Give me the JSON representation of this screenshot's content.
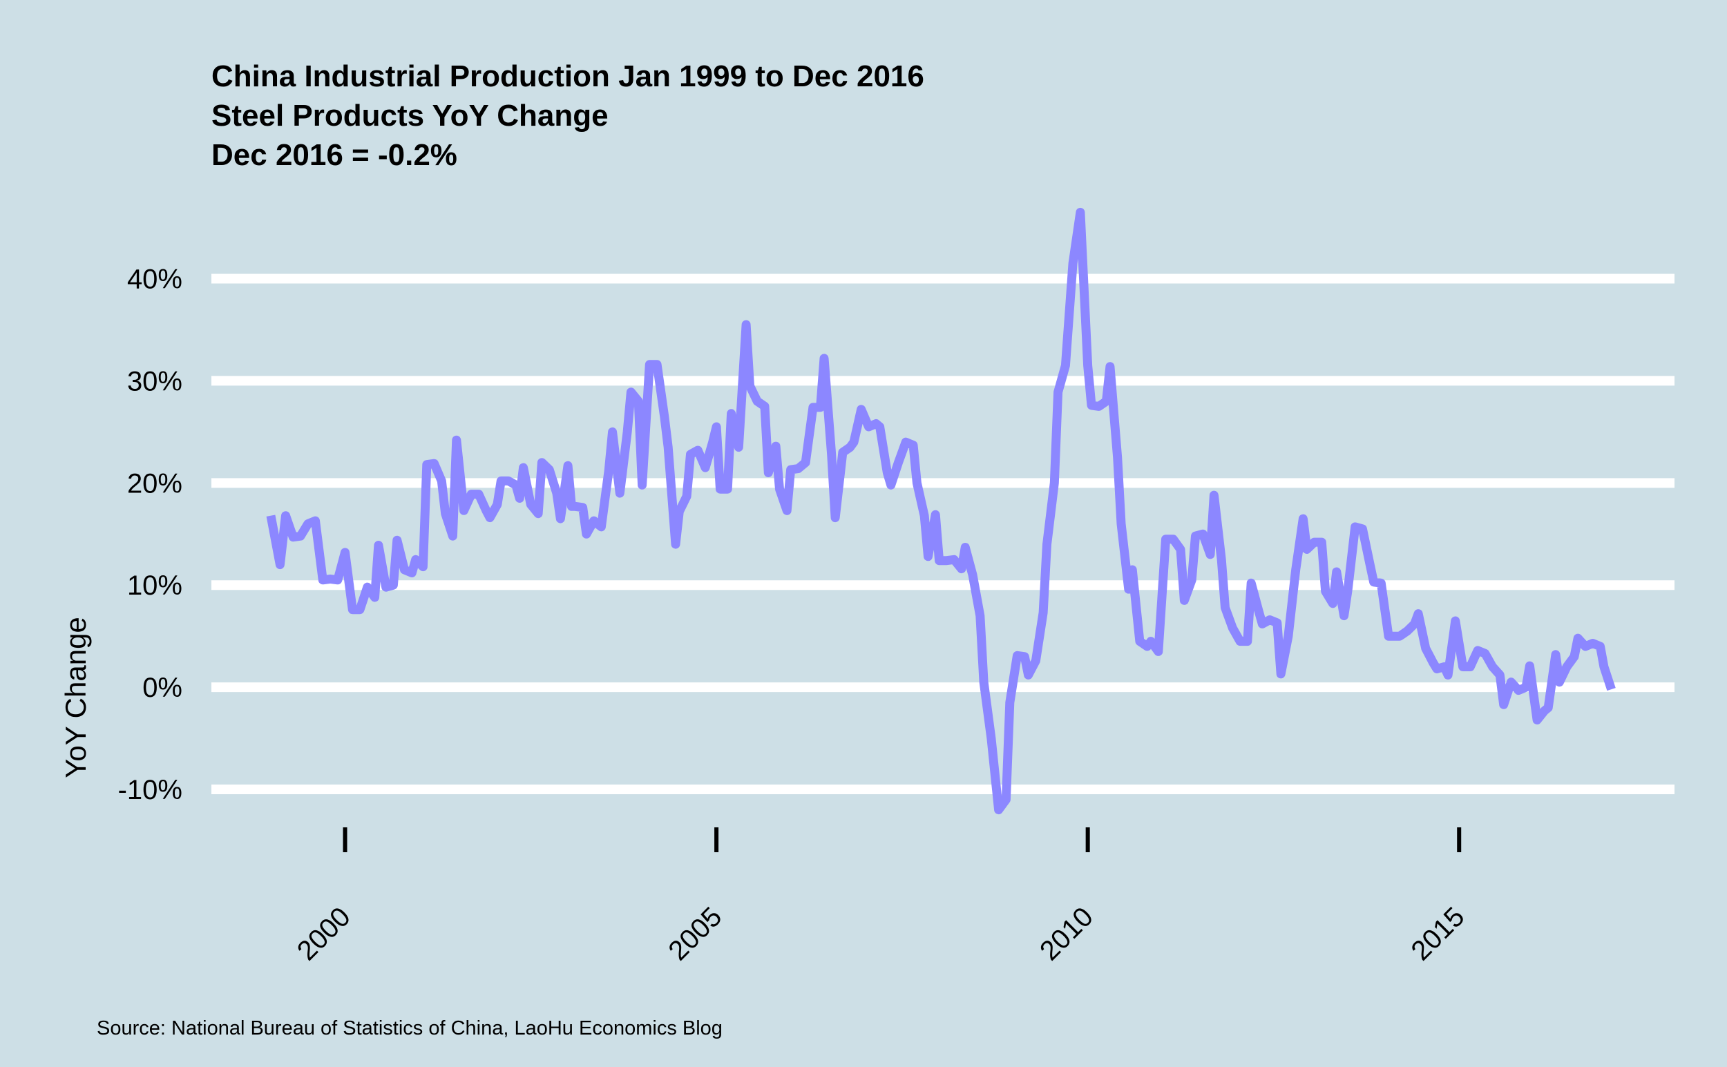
{
  "titles": {
    "line1": "China Industrial Production Jan 1999 to Dec 2016",
    "line2": "Steel Products YoY Change",
    "line3": "Dec 2016 = -0.2%"
  },
  "caption": "Source: National Bureau of Statistics of China, LaoHu Economics Blog",
  "colors": {
    "background": "#cddfe6",
    "grid": "#ffffff",
    "line": "#8c87ff"
  },
  "chart_data": {
    "type": "line",
    "title": "China Industrial Production Jan 1999 to Dec 2016",
    "subtitle": "Steel Products YoY Change",
    "ylabel": "YoY Change",
    "xlabel": "",
    "ylim": [
      -12.5,
      47
    ],
    "xlim": [
      1998.2,
      2017.9
    ],
    "y_ticks": [
      -10,
      0,
      10,
      20,
      30,
      40
    ],
    "y_tick_labels": [
      "-10%",
      "0%",
      "10%",
      "20%",
      "30%",
      "40%"
    ],
    "x_ticks": [
      2000,
      2005,
      2010,
      2015
    ],
    "x_tick_labels": [
      "2000",
      "2005",
      "2010",
      "2015"
    ],
    "grid": "horizontal",
    "legend": "none",
    "series": [
      {
        "points": [
          [
            1999.0,
            16.8
          ],
          [
            1999.125,
            12.0
          ],
          [
            1999.2,
            16.8
          ],
          [
            1999.3,
            14.7
          ],
          [
            1999.4,
            14.8
          ],
          [
            1999.5,
            16.0
          ],
          [
            1999.6,
            16.3
          ],
          [
            1999.7,
            10.5
          ],
          [
            1999.8,
            10.6
          ],
          [
            1999.9,
            10.5
          ],
          [
            2000.0,
            13.2
          ],
          [
            2000.1,
            7.6
          ],
          [
            2000.2,
            7.6
          ],
          [
            2000.3,
            9.8
          ],
          [
            2000.4,
            8.8
          ],
          [
            2000.45,
            13.9
          ],
          [
            2000.55,
            9.8
          ],
          [
            2000.65,
            10.0
          ],
          [
            2000.7,
            14.4
          ],
          [
            2000.8,
            11.5
          ],
          [
            2000.9,
            11.2
          ],
          [
            2000.95,
            12.5
          ],
          [
            2001.05,
            11.8
          ],
          [
            2001.1,
            21.8
          ],
          [
            2001.2,
            21.9
          ],
          [
            2001.3,
            20.2
          ],
          [
            2001.35,
            17.0
          ],
          [
            2001.45,
            14.8
          ],
          [
            2001.5,
            24.2
          ],
          [
            2001.6,
            17.3
          ],
          [
            2001.7,
            18.9
          ],
          [
            2001.8,
            18.9
          ],
          [
            2001.9,
            17.3
          ],
          [
            2001.95,
            16.6
          ],
          [
            2002.05,
            17.9
          ],
          [
            2002.1,
            20.2
          ],
          [
            2002.2,
            20.2
          ],
          [
            2002.3,
            19.8
          ],
          [
            2002.35,
            18.5
          ],
          [
            2002.4,
            21.5
          ],
          [
            2002.5,
            17.9
          ],
          [
            2002.6,
            17.0
          ],
          [
            2002.65,
            22.0
          ],
          [
            2002.75,
            21.3
          ],
          [
            2002.85,
            19.0
          ],
          [
            2002.9,
            16.5
          ],
          [
            2003.0,
            21.7
          ],
          [
            2003.05,
            17.7
          ],
          [
            2003.1,
            17.7
          ],
          [
            2003.2,
            17.6
          ],
          [
            2003.25,
            15.0
          ],
          [
            2003.35,
            16.3
          ],
          [
            2003.45,
            15.7
          ],
          [
            2003.55,
            21.2
          ],
          [
            2003.6,
            25.0
          ],
          [
            2003.7,
            19.0
          ],
          [
            2003.8,
            25.0
          ],
          [
            2003.85,
            28.9
          ],
          [
            2003.95,
            28.0
          ],
          [
            2004.0,
            19.8
          ],
          [
            2004.1,
            31.6
          ],
          [
            2004.2,
            31.6
          ],
          [
            2004.3,
            26.5
          ],
          [
            2004.35,
            23.5
          ],
          [
            2004.45,
            14.0
          ],
          [
            2004.5,
            17.2
          ],
          [
            2004.6,
            18.7
          ],
          [
            2004.65,
            22.8
          ],
          [
            2004.75,
            23.2
          ],
          [
            2004.85,
            21.5
          ],
          [
            2004.95,
            24.0
          ],
          [
            2005.0,
            25.5
          ],
          [
            2005.05,
            19.4
          ],
          [
            2005.15,
            19.4
          ],
          [
            2005.2,
            26.8
          ],
          [
            2005.3,
            23.5
          ],
          [
            2005.4,
            35.5
          ],
          [
            2005.45,
            29.5
          ],
          [
            2005.55,
            28.0
          ],
          [
            2005.65,
            27.5
          ],
          [
            2005.7,
            21.0
          ],
          [
            2005.8,
            23.6
          ],
          [
            2005.85,
            19.4
          ],
          [
            2005.95,
            17.3
          ],
          [
            2006.0,
            21.3
          ],
          [
            2006.1,
            21.4
          ],
          [
            2006.2,
            22.0
          ],
          [
            2006.3,
            27.4
          ],
          [
            2006.4,
            27.4
          ],
          [
            2006.45,
            32.2
          ],
          [
            2006.55,
            22.8
          ],
          [
            2006.6,
            16.6
          ],
          [
            2006.7,
            23.0
          ],
          [
            2006.8,
            23.5
          ],
          [
            2006.85,
            24.0
          ],
          [
            2006.95,
            27.2
          ],
          [
            2007.05,
            25.5
          ],
          [
            2007.15,
            25.8
          ],
          [
            2007.2,
            25.5
          ],
          [
            2007.3,
            21.0
          ],
          [
            2007.35,
            19.8
          ],
          [
            2007.45,
            22.0
          ],
          [
            2007.55,
            24.0
          ],
          [
            2007.65,
            23.7
          ],
          [
            2007.7,
            20.0
          ],
          [
            2007.8,
            16.8
          ],
          [
            2007.85,
            12.8
          ],
          [
            2007.95,
            16.9
          ],
          [
            2008.0,
            12.4
          ],
          [
            2008.1,
            12.4
          ],
          [
            2008.2,
            12.5
          ],
          [
            2008.3,
            11.6
          ],
          [
            2008.35,
            13.7
          ],
          [
            2008.45,
            11.0
          ],
          [
            2008.55,
            7.0
          ],
          [
            2008.6,
            0.5
          ],
          [
            2008.7,
            -5.0
          ],
          [
            2008.8,
            -12.0
          ],
          [
            2008.9,
            -11.0
          ],
          [
            2008.95,
            -1.5
          ],
          [
            2009.05,
            3.1
          ],
          [
            2009.15,
            3.0
          ],
          [
            2009.2,
            1.2
          ],
          [
            2009.3,
            2.6
          ],
          [
            2009.4,
            7.3
          ],
          [
            2009.45,
            14.0
          ],
          [
            2009.55,
            20.0
          ],
          [
            2009.6,
            28.9
          ],
          [
            2009.7,
            31.5
          ],
          [
            2009.8,
            41.5
          ],
          [
            2009.9,
            46.5
          ],
          [
            2010.0,
            31.5
          ],
          [
            2010.05,
            27.6
          ],
          [
            2010.15,
            27.5
          ],
          [
            2010.25,
            28.0
          ],
          [
            2010.3,
            31.4
          ],
          [
            2010.4,
            22.5
          ],
          [
            2010.45,
            16.0
          ],
          [
            2010.55,
            9.6
          ],
          [
            2010.6,
            11.5
          ],
          [
            2010.7,
            4.5
          ],
          [
            2010.8,
            4.0
          ],
          [
            2010.85,
            4.5
          ],
          [
            2010.95,
            3.5
          ],
          [
            2011.05,
            14.5
          ],
          [
            2011.15,
            14.5
          ],
          [
            2011.25,
            13.5
          ],
          [
            2011.3,
            8.5
          ],
          [
            2011.4,
            10.5
          ],
          [
            2011.45,
            14.8
          ],
          [
            2011.55,
            15.0
          ],
          [
            2011.65,
            13.0
          ],
          [
            2011.7,
            18.8
          ],
          [
            2011.8,
            12.5
          ],
          [
            2011.85,
            7.8
          ],
          [
            2011.95,
            5.8
          ],
          [
            2012.05,
            4.5
          ],
          [
            2012.15,
            4.5
          ],
          [
            2012.2,
            10.2
          ],
          [
            2012.3,
            7.5
          ],
          [
            2012.35,
            6.2
          ],
          [
            2012.45,
            6.6
          ],
          [
            2012.55,
            6.3
          ],
          [
            2012.6,
            1.3
          ],
          [
            2012.7,
            5.0
          ],
          [
            2012.8,
            11.5
          ],
          [
            2012.9,
            16.5
          ],
          [
            2012.95,
            13.5
          ],
          [
            2013.05,
            14.2
          ],
          [
            2013.15,
            14.2
          ],
          [
            2013.2,
            9.4
          ],
          [
            2013.3,
            8.2
          ],
          [
            2013.35,
            11.3
          ],
          [
            2013.45,
            7.0
          ],
          [
            2013.5,
            9.4
          ],
          [
            2013.6,
            15.7
          ],
          [
            2013.7,
            15.5
          ],
          [
            2013.8,
            12.0
          ],
          [
            2013.85,
            10.3
          ],
          [
            2013.95,
            10.2
          ],
          [
            2014.05,
            5.0
          ],
          [
            2014.15,
            5.0
          ],
          [
            2014.2,
            5.0
          ],
          [
            2014.3,
            5.5
          ],
          [
            2014.4,
            6.2
          ],
          [
            2014.45,
            7.2
          ],
          [
            2014.55,
            3.8
          ],
          [
            2014.65,
            2.4
          ],
          [
            2014.7,
            1.8
          ],
          [
            2014.8,
            2.0
          ],
          [
            2014.85,
            1.2
          ],
          [
            2014.95,
            6.5
          ],
          [
            2015.05,
            2.0
          ],
          [
            2015.15,
            2.0
          ],
          [
            2015.25,
            3.6
          ],
          [
            2015.35,
            3.3
          ],
          [
            2015.45,
            2.0
          ],
          [
            2015.55,
            1.2
          ],
          [
            2015.6,
            -1.7
          ],
          [
            2015.7,
            0.5
          ],
          [
            2015.8,
            -0.3
          ],
          [
            2015.9,
            0.0
          ],
          [
            2015.95,
            2.1
          ],
          [
            2016.05,
            -3.2
          ],
          [
            2016.15,
            -2.3
          ],
          [
            2016.2,
            -2.0
          ],
          [
            2016.3,
            3.2
          ],
          [
            2016.35,
            0.5
          ],
          [
            2016.45,
            2.0
          ],
          [
            2016.55,
            3.0
          ],
          [
            2016.6,
            4.8
          ],
          [
            2016.7,
            4.0
          ],
          [
            2016.8,
            4.3
          ],
          [
            2016.9,
            4.0
          ],
          [
            2016.95,
            2.0
          ],
          [
            2017.05,
            -0.2
          ]
        ]
      }
    ]
  }
}
